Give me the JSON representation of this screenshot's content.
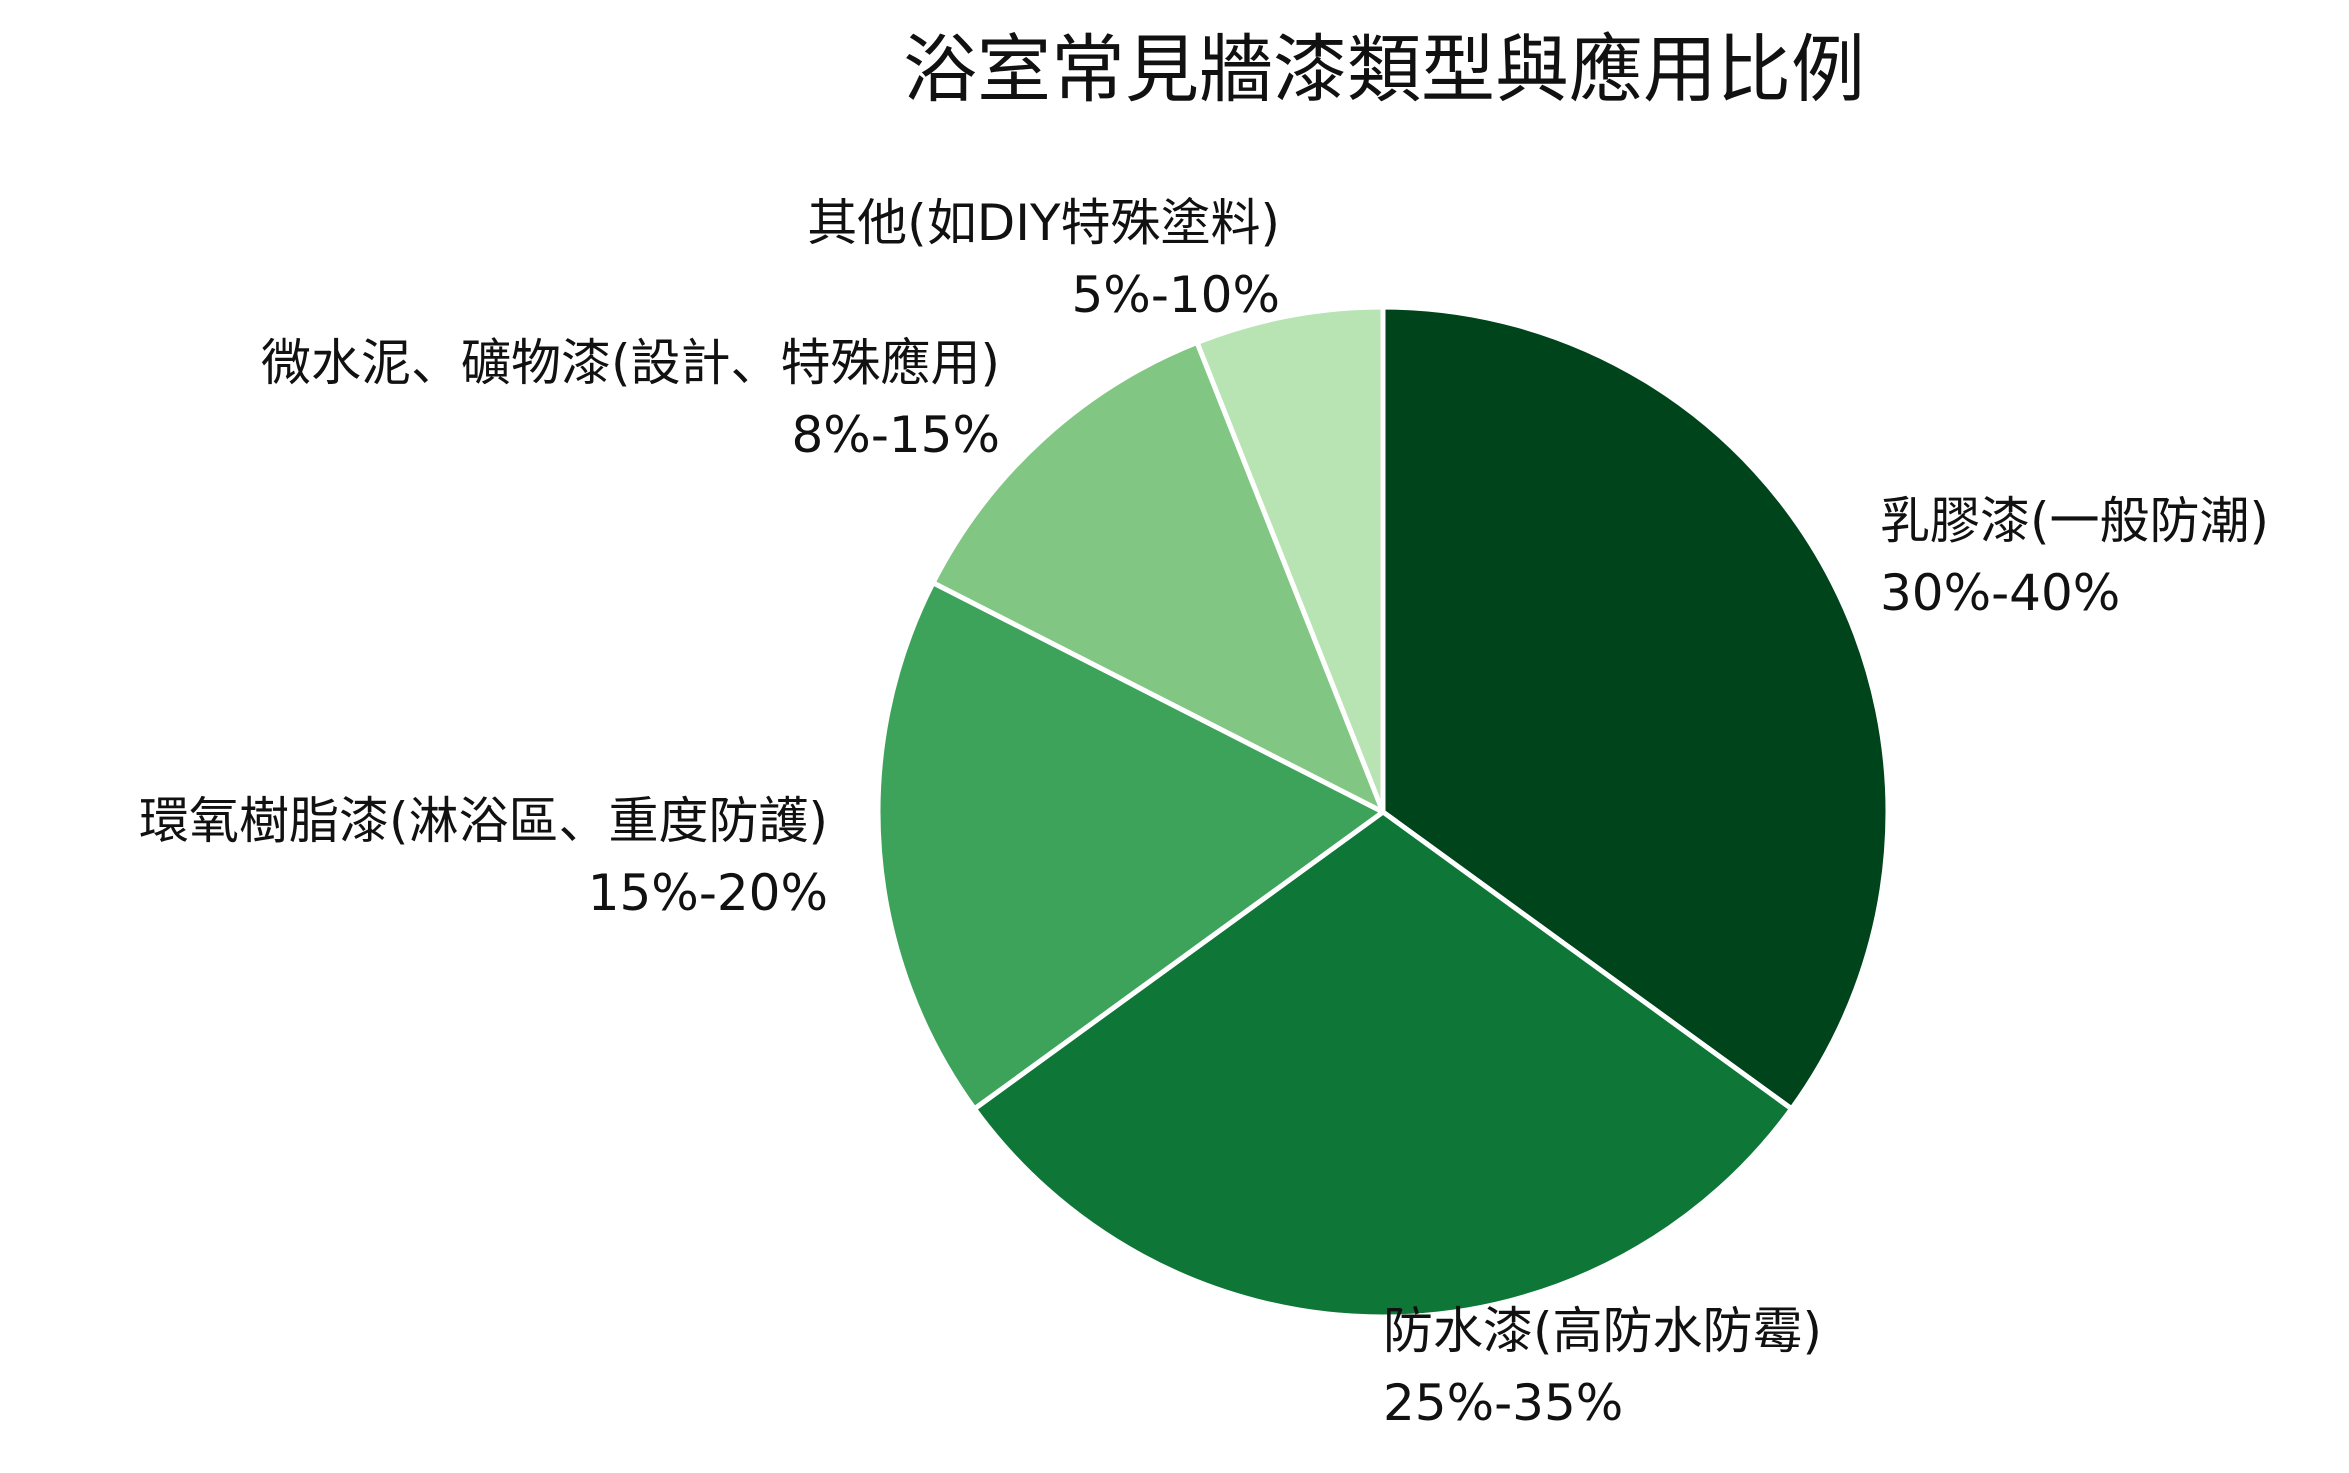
{
  "chart_data": {
    "type": "pie",
    "title": "浴室常見牆漆類型與應用比例",
    "slices": [
      {
        "name": "乳膠漆(一般防潮)",
        "range": "30%-40%",
        "value": 35,
        "color": "#00441b"
      },
      {
        "name": "防水漆(高防水防霉)",
        "range": "25%-35%",
        "value": 30,
        "color": "#0e7636"
      },
      {
        "name": "環氧樹脂漆(淋浴區、重度防護)",
        "range": "15%-20%",
        "value": 17.5,
        "color": "#3da35a"
      },
      {
        "name": "微水泥、礦物漆(設計、特殊應用)",
        "range": "8%-15%",
        "value": 11.5,
        "color": "#81c783"
      },
      {
        "name": "其他(如DIY特殊塗料)",
        "range": "5%-10%",
        "value": 6,
        "color": "#b8e3b2"
      }
    ],
    "start_angle": "12 o'clock",
    "direction": "clockwise",
    "legend": "none",
    "slice_border_color": "#ffffff"
  }
}
